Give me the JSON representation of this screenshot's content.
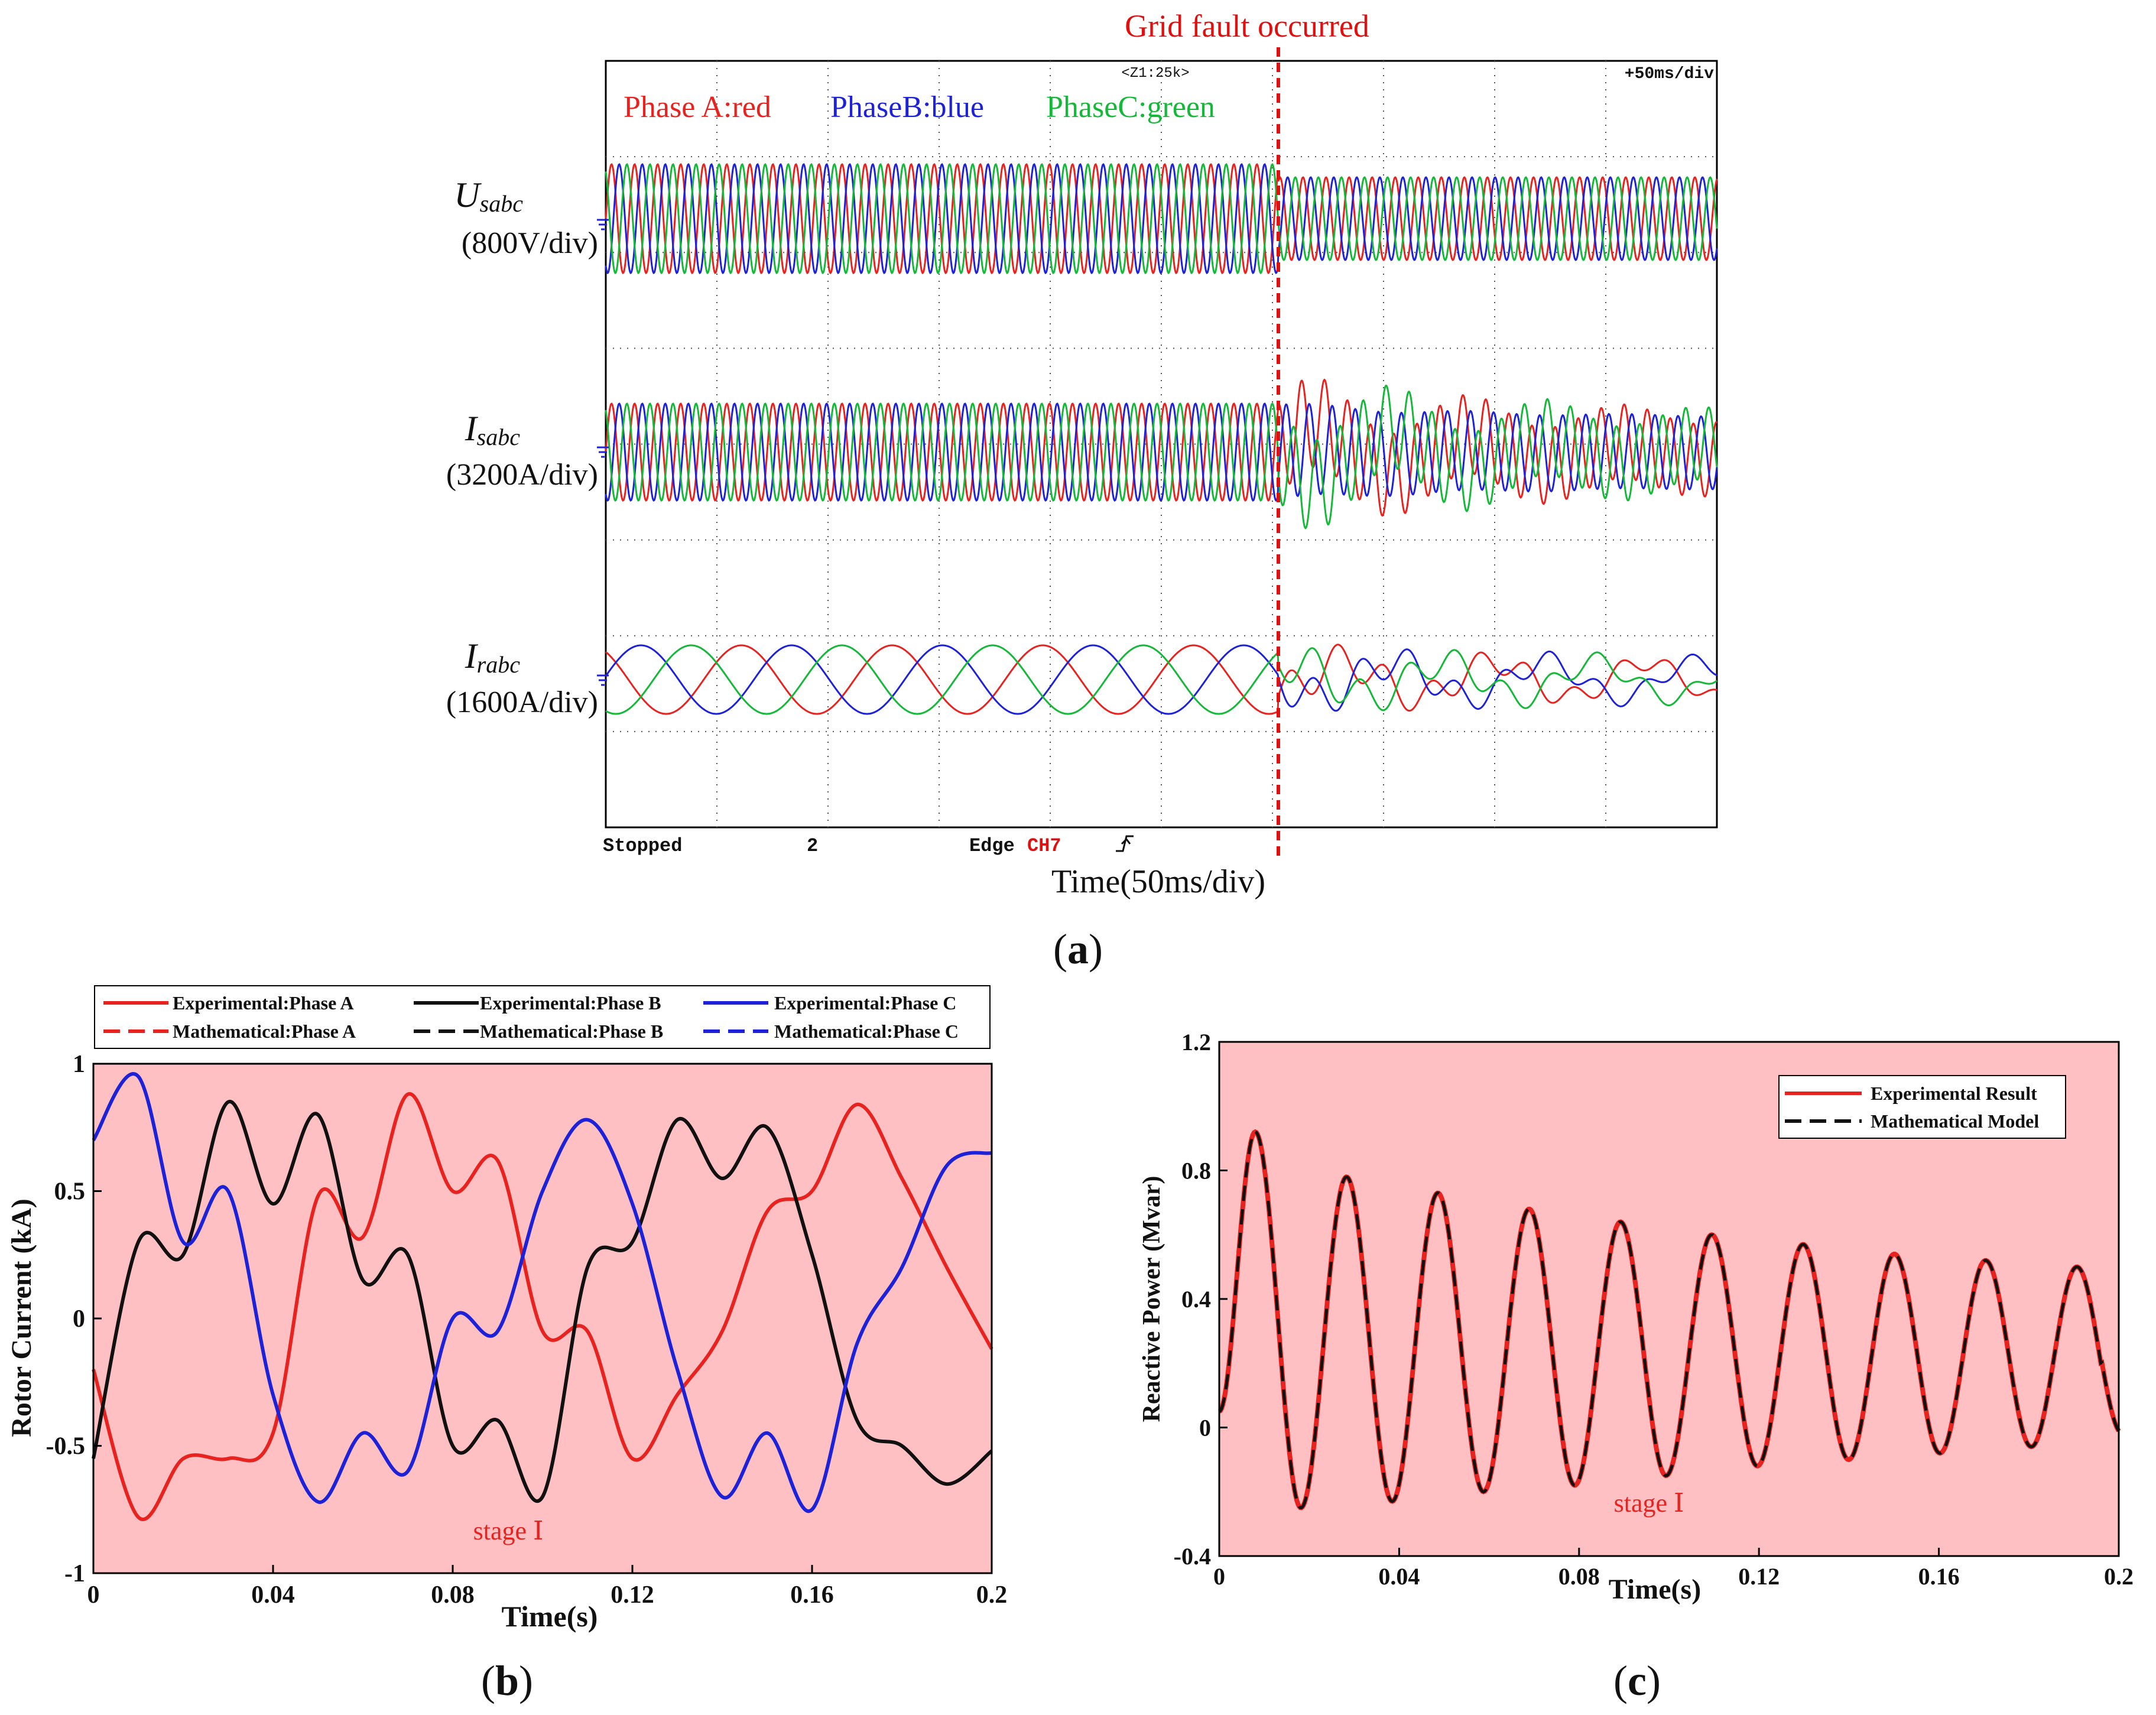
{
  "colors": {
    "red": "#e8231f",
    "blue": "#1d22d9",
    "green": "#16b83a",
    "black": "#111111",
    "stage_fill": "#ffc0c3",
    "fault_line": "#e01010"
  },
  "figure_a": {
    "fault_label": "Grid fault occurred",
    "top_readout": "<Z1:25k>",
    "timebase_readout": "+50ms/div",
    "legend": {
      "a": "Phase A:red",
      "b": "PhaseB:blue",
      "c": "PhaseC:green"
    },
    "channels": [
      {
        "symbol": "U",
        "sub": "sabc",
        "scale": "(800V/div)"
      },
      {
        "symbol": "I",
        "sub": "sabc",
        "scale": "(3200A/div)"
      },
      {
        "symbol": "I",
        "sub": "rabc",
        "scale": "(1600A/div)"
      }
    ],
    "status": {
      "stopped": "Stopped",
      "count": "2",
      "edge": "Edge",
      "ch": "CH7"
    },
    "xlabel": "Time(50ms/div)",
    "caption_letter": "a"
  },
  "chart_data": [
    {
      "id": "b",
      "type": "line",
      "xlabel": "Time(s)",
      "ylabel": "Rotor Current (kA)",
      "xlim": [
        0,
        0.2
      ],
      "ylim": [
        -1,
        1
      ],
      "xticks": [
        "0",
        "0.04",
        "0.08",
        "0.12",
        "0.16",
        "0.2"
      ],
      "yticks": [
        "1",
        "0.5",
        "0",
        "-0.5",
        "-1"
      ],
      "stage_label": "stage Ⅰ",
      "legend": [
        "Experimental:Phase A",
        "Experimental:Phase B",
        "Experimental:Phase C",
        "Mathematical:Phase A",
        "Mathematical:Phase B",
        "Mathematical:Phase C"
      ],
      "x": [
        0,
        0.01,
        0.02,
        0.03,
        0.04,
        0.05,
        0.06,
        0.07,
        0.08,
        0.09,
        0.1,
        0.11,
        0.12,
        0.13,
        0.14,
        0.15,
        0.16,
        0.17,
        0.18,
        0.19,
        0.2
      ],
      "series": [
        {
          "name": "Phase A",
          "color": "red",
          "values": [
            -0.2,
            -0.78,
            -0.55,
            -0.55,
            -0.45,
            0.48,
            0.32,
            0.88,
            0.5,
            0.62,
            -0.05,
            -0.05,
            -0.55,
            -0.3,
            -0.05,
            0.42,
            0.5,
            0.84,
            0.55,
            0.2,
            -0.12
          ]
        },
        {
          "name": "Phase B",
          "color": "black",
          "values": [
            -0.55,
            0.3,
            0.25,
            0.85,
            0.45,
            0.8,
            0.15,
            0.25,
            -0.5,
            -0.4,
            -0.7,
            0.2,
            0.3,
            0.78,
            0.55,
            0.75,
            0.25,
            -0.4,
            -0.5,
            -0.65,
            -0.52
          ]
        },
        {
          "name": "Phase C",
          "color": "blue",
          "values": [
            0.7,
            0.95,
            0.3,
            0.5,
            -0.3,
            -0.72,
            -0.45,
            -0.6,
            0.0,
            -0.05,
            0.5,
            0.78,
            0.45,
            -0.2,
            -0.7,
            -0.45,
            -0.75,
            -0.1,
            0.2,
            0.6,
            0.65
          ]
        }
      ],
      "caption_letter": "b"
    },
    {
      "id": "c",
      "type": "line",
      "xlabel": "Time(s)",
      "ylabel": "Reactive Power (Mvar)",
      "xlim": [
        0,
        0.2
      ],
      "ylim": [
        -0.4,
        1.2
      ],
      "xticks": [
        "0",
        "0.04",
        "0.08",
        "0.12",
        "0.16",
        "0.2"
      ],
      "yticks": [
        "1.2",
        "0.8",
        "0.4",
        "0",
        "-0.4"
      ],
      "stage_label": "stage Ⅰ",
      "legend": [
        "Experimental Result",
        "Mathematical Model"
      ],
      "oscillation": {
        "offset": 0.3,
        "period": 0.0203,
        "first_peak_time": 0.008,
        "peaks": [
          0.92,
          0.78,
          0.73,
          0.68,
          0.64,
          0.6,
          0.57,
          0.54,
          0.52,
          0.5
        ],
        "troughs": [
          -0.25,
          -0.23,
          -0.2,
          -0.18,
          -0.15,
          -0.12,
          -0.1,
          -0.08,
          -0.06
        ]
      },
      "caption_letter": "c"
    }
  ]
}
